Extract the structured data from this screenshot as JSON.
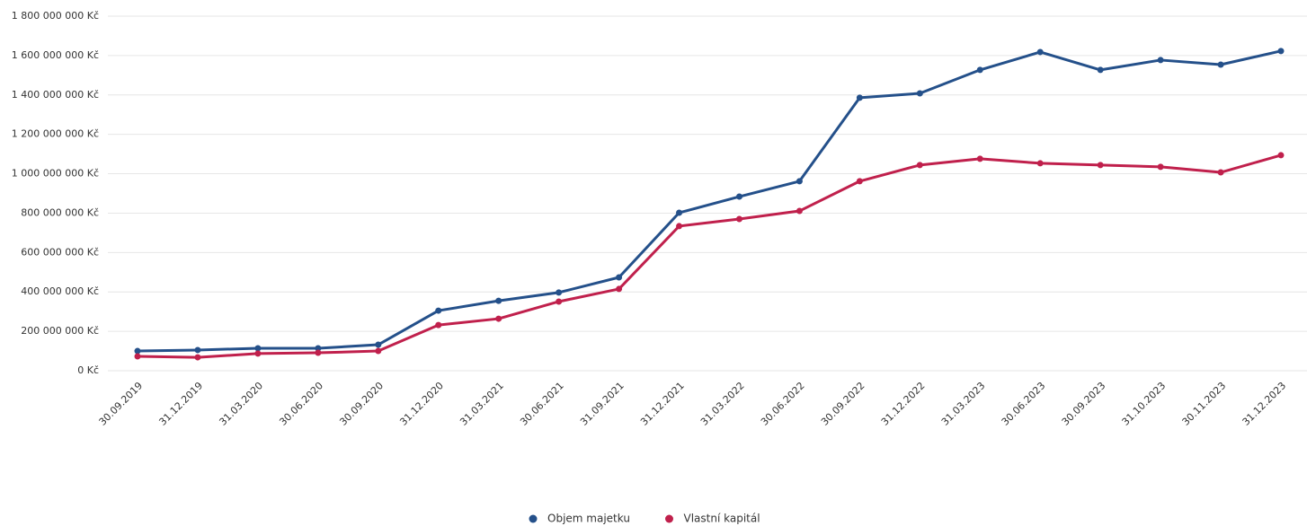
{
  "chart_data": {
    "type": "line",
    "categories": [
      "30.09.2019",
      "31.12.2019",
      "31.03.2020",
      "30.06.2020",
      "30.09.2020",
      "31.12.2020",
      "31.03.2021",
      "30.06.2021",
      "31.09.2021",
      "31.12.2021",
      "31.03.2022",
      "30.06.2022",
      "30.09.2022",
      "31.12.2022",
      "31.03.2023",
      "30.06.2023",
      "30.09.2023",
      "31.10.2023",
      "30.11.2023",
      "31.12.2023"
    ],
    "series": [
      {
        "name": "Objem majetku",
        "color": "#24508a",
        "values": [
          100000000,
          105000000,
          114000000,
          114000000,
          132000000,
          305000000,
          355000000,
          397000000,
          474000000,
          802000000,
          884000000,
          962000000,
          1386000000,
          1408000000,
          1527000000,
          1618000000,
          1527000000,
          1577000000,
          1554000000,
          1623000000
        ]
      },
      {
        "name": "Vlastní kapitál",
        "color": "#c0204c",
        "values": [
          73000000,
          68000000,
          87000000,
          91000000,
          100000000,
          232000000,
          264000000,
          351000000,
          415000000,
          734000000,
          770000000,
          811000000,
          962000000,
          1044000000,
          1076000000,
          1053000000,
          1044000000,
          1035000000,
          1007000000,
          1094000000
        ]
      }
    ],
    "ylim": [
      0,
      1800000000
    ],
    "yticks": [
      {
        "value": 0,
        "label": "0 Kč"
      },
      {
        "value": 200000000,
        "label": "200 000 000 Kč"
      },
      {
        "value": 400000000,
        "label": "400 000 000 Kč"
      },
      {
        "value": 600000000,
        "label": "600 000 000 Kč"
      },
      {
        "value": 800000000,
        "label": "800 000 000 Kč"
      },
      {
        "value": 1000000000,
        "label": "1 000 000 000 Kč"
      },
      {
        "value": 1200000000,
        "label": "1 200 000 000 Kč"
      },
      {
        "value": 1400000000,
        "label": "1 400 000 000 Kč"
      },
      {
        "value": 1600000000,
        "label": "1 600 000 000 Kč"
      },
      {
        "value": 1800000000,
        "label": "1 800 000 000 Kč"
      }
    ],
    "grid": true,
    "legend": "bottom"
  }
}
